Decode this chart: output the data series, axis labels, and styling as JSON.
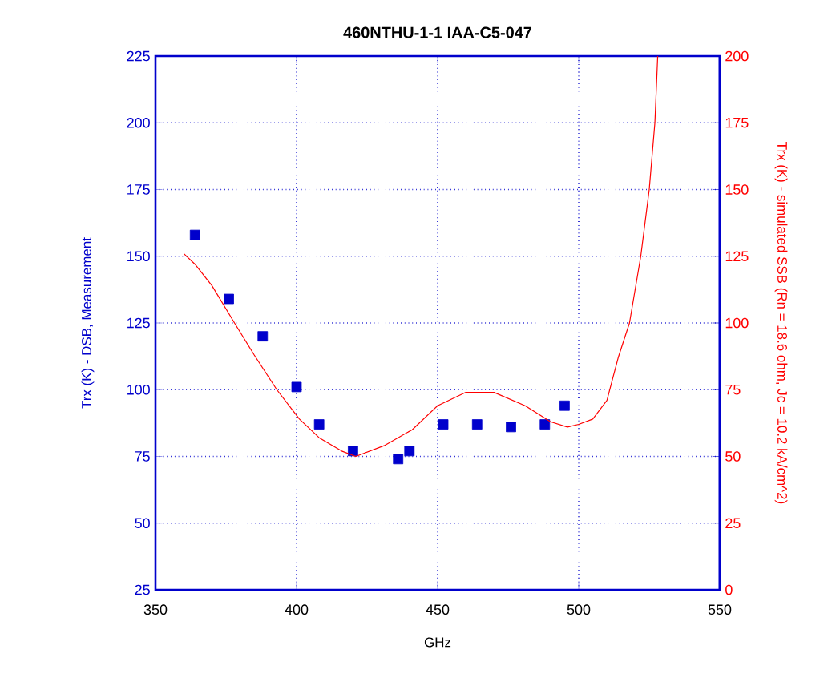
{
  "chart_data": {
    "type": "scatter",
    "title": "460NTHU-1-1 IAA-C5-047",
    "xlabel": "GHz",
    "ylabel": "Trx (K) - DSB, Measurement",
    "y2label": "Trx (K) - simulated SSB (Rn = 18.6 ohm, Jc = 10.2 kA/cm^2)",
    "xlim": [
      350,
      550
    ],
    "xticks": [
      350,
      400,
      450,
      500,
      550
    ],
    "ylim": [
      25,
      225
    ],
    "yticks": [
      25,
      50,
      75,
      100,
      125,
      150,
      175,
      200,
      225
    ],
    "y2lim": [
      0,
      200
    ],
    "y2ticks": [
      0,
      25,
      50,
      75,
      100,
      125,
      150,
      175,
      200
    ],
    "grid": true,
    "series": [
      {
        "marker": "square",
        "color": "#0000cc",
        "x": [
          364,
          376,
          388,
          400,
          408,
          420,
          436,
          440,
          452,
          464,
          476,
          488,
          495
        ],
        "values": [
          158,
          134,
          120,
          101,
          87,
          77,
          74,
          77,
          87,
          87,
          86,
          87,
          94
        ]
      },
      {
        "type": "line",
        "axis": "y2",
        "marker": "none",
        "color": "#ff0000",
        "x": [
          360,
          364,
          370,
          378,
          385,
          393,
          401,
          408,
          416,
          421,
          431,
          441,
          450,
          460,
          470,
          481,
          490,
          496,
          500,
          505,
          510,
          514,
          518,
          522,
          525,
          527,
          528
        ],
        "values": [
          126,
          122,
          114,
          100,
          88,
          75,
          64,
          57,
          52,
          50,
          54,
          60,
          69,
          74,
          74,
          69,
          63,
          61,
          62,
          64,
          71,
          87,
          100,
          125,
          150,
          175,
          200
        ]
      }
    ]
  }
}
